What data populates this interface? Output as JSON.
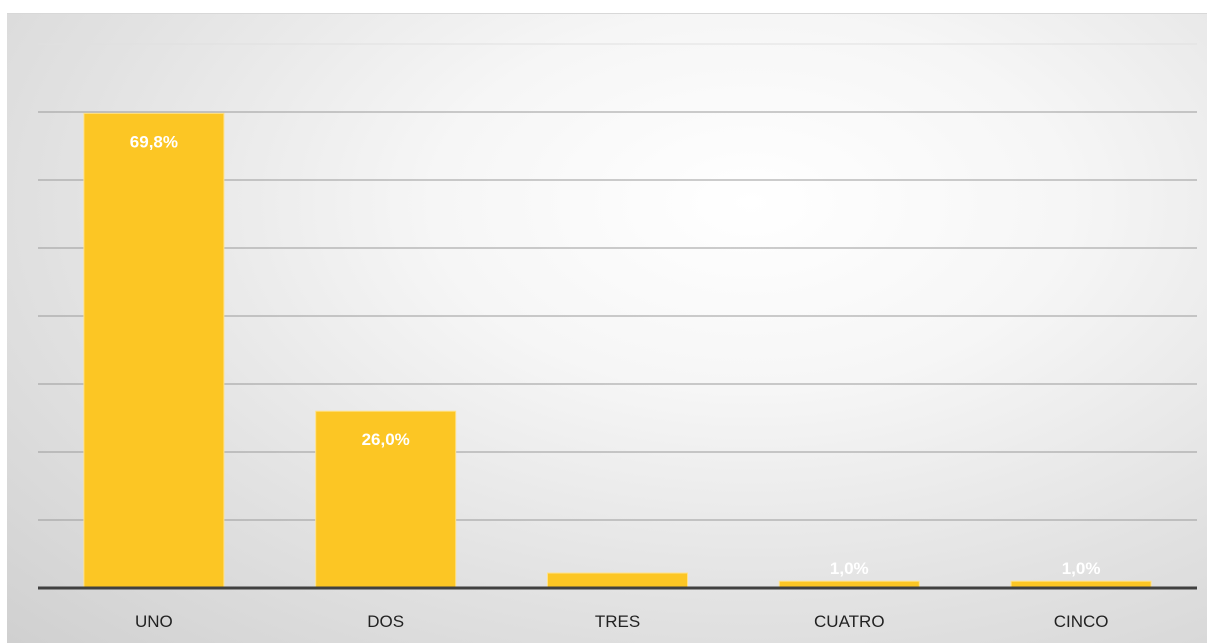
{
  "chart_data": {
    "type": "bar",
    "categories": [
      "UNO",
      "DOS",
      "TRES",
      "CUATRO",
      "CINCO"
    ],
    "values": [
      69.8,
      26.0,
      2.2,
      1.0,
      1.0
    ],
    "data_labels": [
      "69,8%",
      "26,0%",
      "",
      "1,0%",
      "1,0%"
    ],
    "ylim": [
      0,
      80
    ],
    "ytick_step": 10,
    "grid": true,
    "title": "",
    "xlabel": "",
    "ylabel": "",
    "colors": {
      "bar": "#FCC624",
      "bar_edge": "#FFE28A",
      "grid": "#9a9a9a",
      "axis": "#404040",
      "label": "#ffffff",
      "category_text": "#222222"
    }
  }
}
